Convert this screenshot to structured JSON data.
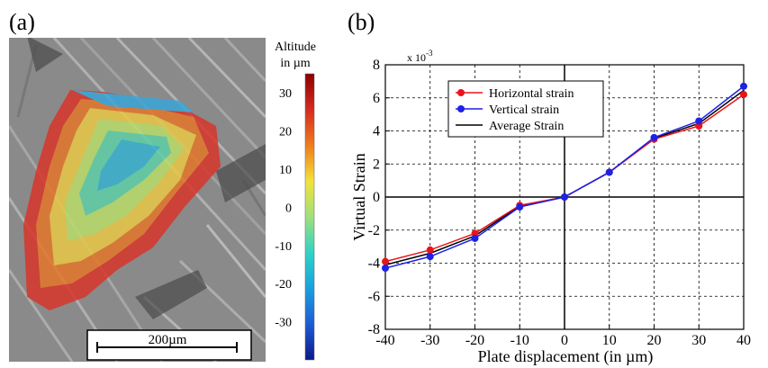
{
  "panel_a": {
    "label": "(a)",
    "colorbar": {
      "title_line1": "Altitude",
      "title_line2": "in µm",
      "ticks": [
        "30",
        "20",
        "10",
        "0",
        "-10",
        "-20",
        "-30"
      ],
      "tick_values": [
        30,
        20,
        10,
        0,
        -10,
        -20,
        -30
      ],
      "range": [
        -40,
        35
      ],
      "colors": [
        "#8b0000",
        "#d62a1f",
        "#f07c1c",
        "#f2e238",
        "#9fe07a",
        "#2fd3c6",
        "#1aa0e0",
        "#1e5bd6",
        "#0a1a8a"
      ]
    },
    "scale_bar": "200µm",
    "image": {
      "background": "#8a8a8a",
      "region_colors": [
        "#d8352a",
        "#e4772a",
        "#e9c846",
        "#b9dd6a",
        "#5fd0a8",
        "#37b3cf",
        "#3aa6d8"
      ]
    }
  },
  "panel_b": {
    "label": "(b)",
    "chart_data": {
      "type": "line",
      "xlabel": "Plate  displacement  (in µm)",
      "ylabel": "Virtual  Strain",
      "y_multiplier": "x 10",
      "y_multiplier_exp": "-3",
      "xlim": [
        -40,
        40
      ],
      "ylim": [
        -8,
        8
      ],
      "xticks": [
        -40,
        -30,
        -20,
        -10,
        0,
        10,
        20,
        30,
        40
      ],
      "yticks": [
        -8,
        -6,
        -4,
        -2,
        0,
        2,
        4,
        6,
        8
      ],
      "grid": true,
      "legend_position": "top-left",
      "x": [
        -40,
        -30,
        -20,
        -10,
        0,
        10,
        20,
        30,
        40
      ],
      "series": [
        {
          "name": "Horizontal  strain",
          "color": "#e8141b",
          "marker": true,
          "values": [
            -3.9,
            -3.2,
            -2.2,
            -0.5,
            0.0,
            1.5,
            3.5,
            4.3,
            6.2
          ]
        },
        {
          "name": "Vertical strain",
          "color": "#1d22e6",
          "marker": true,
          "values": [
            -4.3,
            -3.6,
            -2.5,
            -0.6,
            0.0,
            1.5,
            3.6,
            4.6,
            6.7
          ]
        },
        {
          "name": "Average Strain",
          "color": "#000000",
          "marker": false,
          "values": [
            -4.1,
            -3.4,
            -2.35,
            -0.55,
            0.0,
            1.5,
            3.55,
            4.45,
            6.45
          ]
        }
      ]
    }
  }
}
